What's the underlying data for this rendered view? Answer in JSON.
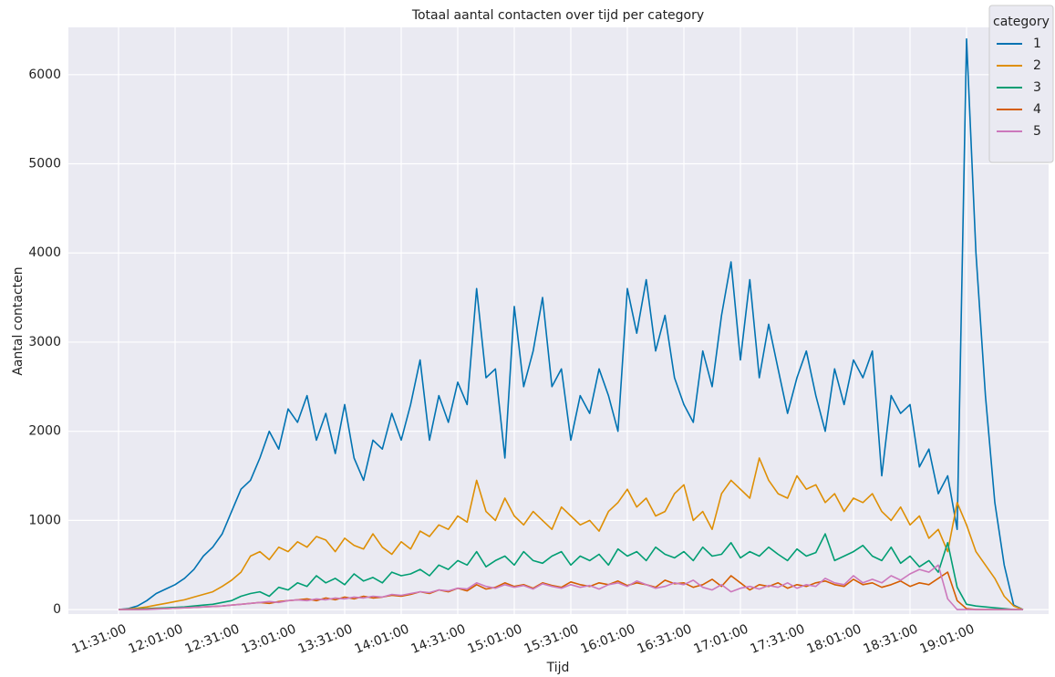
{
  "chart_data": {
    "type": "line",
    "title": "Totaal aantal contacten over tijd per category",
    "xlabel": "Tijd",
    "ylabel": "Aantal contacten",
    "legend_title": "category",
    "legend_loc": "upper right",
    "grid": true,
    "x": [
      "11:31:00",
      "11:36:00",
      "11:41:00",
      "11:46:00",
      "11:51:00",
      "11:56:00",
      "12:01:00",
      "12:06:00",
      "12:11:00",
      "12:16:00",
      "12:21:00",
      "12:26:00",
      "12:31:00",
      "12:36:00",
      "12:41:00",
      "12:46:00",
      "12:51:00",
      "12:56:00",
      "13:01:00",
      "13:06:00",
      "13:11:00",
      "13:16:00",
      "13:21:00",
      "13:26:00",
      "13:31:00",
      "13:36:00",
      "13:41:00",
      "13:46:00",
      "13:51:00",
      "13:56:00",
      "14:01:00",
      "14:06:00",
      "14:11:00",
      "14:16:00",
      "14:21:00",
      "14:26:00",
      "14:31:00",
      "14:36:00",
      "14:41:00",
      "14:46:00",
      "14:51:00",
      "14:56:00",
      "15:01:00",
      "15:06:00",
      "15:11:00",
      "15:16:00",
      "15:21:00",
      "15:26:00",
      "15:31:00",
      "15:36:00",
      "15:41:00",
      "15:46:00",
      "15:51:00",
      "15:56:00",
      "16:01:00",
      "16:06:00",
      "16:11:00",
      "16:16:00",
      "16:21:00",
      "16:26:00",
      "16:31:00",
      "16:36:00",
      "16:41:00",
      "16:46:00",
      "16:51:00",
      "16:56:00",
      "17:01:00",
      "17:06:00",
      "17:11:00",
      "17:16:00",
      "17:21:00",
      "17:26:00",
      "17:31:00",
      "17:36:00",
      "17:41:00",
      "17:46:00",
      "17:51:00",
      "17:56:00",
      "18:01:00",
      "18:06:00",
      "18:11:00",
      "18:16:00",
      "18:21:00",
      "18:26:00",
      "18:31:00",
      "18:36:00",
      "18:41:00",
      "18:46:00",
      "18:51:00",
      "18:56:00",
      "19:01:00",
      "19:06:00",
      "19:11:00",
      "19:16:00",
      "19:21:00",
      "19:26:00",
      "19:31:00"
    ],
    "xticks": [
      "11:31:00",
      "12:01:00",
      "12:31:00",
      "13:01:00",
      "13:31:00",
      "14:01:00",
      "14:31:00",
      "15:01:00",
      "15:31:00",
      "16:01:00",
      "16:31:00",
      "17:01:00",
      "17:31:00",
      "18:01:00",
      "18:31:00",
      "19:01:00"
    ],
    "ylim": [
      -50,
      6530
    ],
    "yticks": [
      0,
      1000,
      2000,
      3000,
      4000,
      5000,
      6000
    ],
    "series": [
      {
        "name": "1",
        "color": "#0173b2",
        "values": [
          0,
          10,
          40,
          100,
          180,
          230,
          280,
          350,
          450,
          600,
          700,
          850,
          1100,
          1350,
          1450,
          1700,
          2000,
          1800,
          2250,
          2100,
          2400,
          1900,
          2200,
          1750,
          2300,
          1700,
          1450,
          1900,
          1800,
          2200,
          1900,
          2300,
          2800,
          1900,
          2400,
          2100,
          2550,
          2300,
          3600,
          2600,
          2700,
          1700,
          3400,
          2500,
          2900,
          3500,
          2500,
          2700,
          1900,
          2400,
          2200,
          2700,
          2400,
          2000,
          3600,
          3100,
          3700,
          2900,
          3300,
          2600,
          2300,
          2100,
          2900,
          2500,
          3300,
          3900,
          2800,
          3700,
          2600,
          3200,
          2700,
          2200,
          2600,
          2900,
          2400,
          2000,
          2700,
          2300,
          2800,
          2600,
          2900,
          1500,
          2400,
          2200,
          2300,
          1600,
          1800,
          1300,
          1500,
          900,
          6400,
          4000,
          2400,
          1200,
          500,
          50,
          0
        ]
      },
      {
        "name": "2",
        "color": "#de8f05",
        "values": [
          0,
          5,
          15,
          30,
          50,
          70,
          90,
          110,
          140,
          170,
          200,
          260,
          330,
          420,
          600,
          650,
          560,
          700,
          650,
          760,
          700,
          820,
          780,
          650,
          800,
          720,
          680,
          850,
          700,
          620,
          760,
          680,
          880,
          820,
          950,
          900,
          1050,
          980,
          1450,
          1100,
          1000,
          1250,
          1050,
          950,
          1100,
          1000,
          900,
          1150,
          1050,
          950,
          1000,
          880,
          1100,
          1200,
          1350,
          1150,
          1250,
          1050,
          1100,
          1300,
          1400,
          1000,
          1100,
          900,
          1300,
          1450,
          1350,
          1250,
          1700,
          1450,
          1300,
          1250,
          1500,
          1350,
          1400,
          1200,
          1300,
          1100,
          1250,
          1200,
          1300,
          1100,
          1000,
          1150,
          950,
          1050,
          800,
          900,
          650,
          1200,
          950,
          650,
          500,
          350,
          150,
          40,
          0
        ]
      },
      {
        "name": "3",
        "color": "#029e73",
        "values": [
          0,
          0,
          5,
          10,
          15,
          20,
          25,
          30,
          40,
          50,
          60,
          80,
          100,
          150,
          180,
          200,
          150,
          250,
          220,
          300,
          260,
          380,
          300,
          350,
          280,
          400,
          320,
          360,
          300,
          420,
          380,
          400,
          450,
          380,
          500,
          450,
          550,
          500,
          650,
          480,
          550,
          600,
          500,
          650,
          550,
          520,
          600,
          650,
          500,
          600,
          550,
          620,
          500,
          680,
          600,
          650,
          550,
          700,
          620,
          580,
          650,
          550,
          700,
          600,
          620,
          750,
          580,
          650,
          600,
          700,
          620,
          550,
          680,
          600,
          640,
          850,
          550,
          600,
          650,
          720,
          600,
          550,
          700,
          520,
          600,
          480,
          550,
          420,
          750,
          250,
          60,
          40,
          30,
          20,
          10,
          0,
          0
        ]
      },
      {
        "name": "4",
        "color": "#d55e00",
        "values": [
          0,
          0,
          0,
          5,
          10,
          10,
          15,
          20,
          25,
          30,
          35,
          40,
          50,
          60,
          70,
          80,
          70,
          90,
          100,
          110,
          120,
          100,
          130,
          110,
          140,
          120,
          150,
          130,
          140,
          160,
          150,
          170,
          200,
          180,
          220,
          200,
          240,
          210,
          280,
          230,
          250,
          300,
          260,
          280,
          240,
          300,
          270,
          250,
          310,
          280,
          260,
          300,
          280,
          320,
          270,
          300,
          280,
          250,
          330,
          290,
          300,
          250,
          280,
          340,
          260,
          380,
          300,
          220,
          280,
          260,
          300,
          240,
          280,
          260,
          300,
          320,
          280,
          260,
          340,
          280,
          300,
          250,
          280,
          320,
          260,
          300,
          280,
          350,
          420,
          100,
          10,
          0,
          0,
          0,
          0,
          0,
          0
        ]
      },
      {
        "name": "5",
        "color": "#cc78bc",
        "values": [
          0,
          0,
          0,
          0,
          5,
          10,
          15,
          20,
          25,
          30,
          35,
          40,
          50,
          60,
          70,
          80,
          90,
          80,
          100,
          110,
          100,
          120,
          110,
          130,
          120,
          140,
          130,
          150,
          140,
          170,
          160,
          180,
          200,
          190,
          220,
          210,
          240,
          230,
          300,
          260,
          240,
          280,
          250,
          270,
          230,
          290,
          260,
          240,
          280,
          250,
          270,
          230,
          280,
          300,
          260,
          320,
          280,
          240,
          260,
          300,
          280,
          330,
          250,
          220,
          280,
          200,
          240,
          260,
          230,
          270,
          250,
          300,
          240,
          280,
          260,
          350,
          300,
          280,
          380,
          300,
          340,
          300,
          380,
          330,
          400,
          450,
          420,
          500,
          120,
          0,
          0,
          0,
          0,
          0,
          0,
          0,
          0
        ]
      }
    ]
  }
}
